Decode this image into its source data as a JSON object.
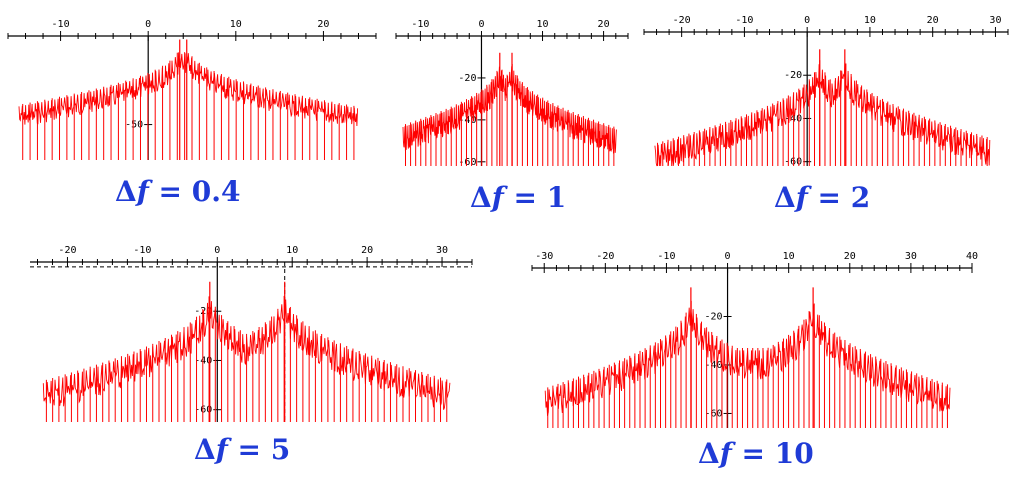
{
  "colors": {
    "signal": "#ff0000",
    "axis": "#000000",
    "caption": "#1f3bd6"
  },
  "chart_data": [
    {
      "type": "line",
      "title": "Δf = 0.4",
      "caption": {
        "prefix": "Δ",
        "var": "f",
        "eq": "= ",
        "value": "0.4"
      },
      "x_ticks": [
        -10,
        0,
        10,
        20
      ],
      "y_ticks": [
        -50
      ],
      "xlim": [
        -16,
        26
      ],
      "ylim": [
        -70,
        0
      ],
      "peaks": [
        3.6,
        4.4
      ],
      "peak_db": -8,
      "floor_db": -70,
      "grid": false
    },
    {
      "type": "line",
      "title": "Δf = 1",
      "caption": {
        "prefix": "Δ",
        "var": "f",
        "eq": "= ",
        "value": "1"
      },
      "x_ticks": [
        -10,
        0,
        10,
        20
      ],
      "y_ticks": [
        -20,
        -40,
        -60
      ],
      "xlim": [
        -14,
        24
      ],
      "ylim": [
        -62,
        0
      ],
      "peaks": [
        3,
        5
      ],
      "peak_db": -14,
      "floor_db": -62,
      "grid": false
    },
    {
      "type": "line",
      "title": "Δf = 2",
      "caption": {
        "prefix": "Δ",
        "var": "f",
        "eq": "= ",
        "value": "2"
      },
      "x_ticks": [
        -20,
        -10,
        0,
        10,
        20,
        30
      ],
      "y_ticks": [
        -20,
        -40,
        -60
      ],
      "xlim": [
        -26,
        32
      ],
      "ylim": [
        -62,
        0
      ],
      "peaks": [
        2,
        6
      ],
      "peak_db": -14,
      "floor_db": -62,
      "grid": false
    },
    {
      "type": "line",
      "title": "Δf = 5",
      "caption": {
        "prefix": "Δ",
        "var": "f",
        "eq": "= ",
        "value": "5"
      },
      "x_ticks": [
        -20,
        -10,
        0,
        10,
        20,
        30
      ],
      "y_ticks": [
        -20,
        -40,
        -60
      ],
      "xlim": [
        -25,
        34
      ],
      "ylim": [
        -65,
        0
      ],
      "peaks": [
        -1,
        9
      ],
      "peak_db": -14,
      "floor_db": -65,
      "grid": false,
      "markers": {
        "hline_db": -2,
        "vline_x": 9
      }
    },
    {
      "type": "line",
      "title": "Δf = 10",
      "caption": {
        "prefix": "Δ",
        "var": "f",
        "eq": "= ",
        "value": "10"
      },
      "x_ticks": [
        -30,
        -20,
        -10,
        0,
        10,
        20,
        30,
        40
      ],
      "y_ticks": [
        -20,
        -40,
        -60
      ],
      "xlim": [
        -32,
        40
      ],
      "ylim": [
        -66,
        0
      ],
      "peaks": [
        -6,
        14
      ],
      "peak_db": -14,
      "floor_db": -66,
      "grid": false
    }
  ]
}
